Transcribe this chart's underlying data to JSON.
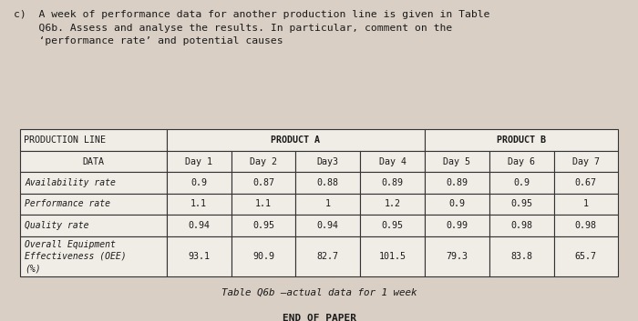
{
  "header_text": "c)  A week of performance data for another production line is given in Table\n    Q6b. Assess and analyse the results. In particular, comment on the\n    ‘performance rate’ and potential causes",
  "bg_color": "#d9cfc4",
  "table_bg": "#f0ece6",
  "col_header_row2": [
    "DATA",
    "Day 1",
    "Day 2",
    "Day3",
    "Day 4",
    "Day 5",
    "Day 6",
    "Day 7"
  ],
  "rows": [
    [
      "Availability rate",
      "0.9",
      "0.87",
      "0.88",
      "0.89",
      "0.89",
      "0.9",
      "0.67"
    ],
    [
      "Performance rate",
      "1.1",
      "1.1",
      "1",
      "1.2",
      "0.9",
      "0.95",
      "1"
    ],
    [
      "Quality rate",
      "0.94",
      "0.95",
      "0.94",
      "0.95",
      "0.99",
      "0.98",
      "0.98"
    ],
    [
      "Overall Equipment\nEffectiveness (OEE)\n(%)",
      "93.1",
      "90.9",
      "82.7",
      "101.5",
      "79.3",
      "83.8",
      "65.7"
    ]
  ],
  "caption": "Table Q6b –actual data for 1 week",
  "footer": "END OF PAPER"
}
